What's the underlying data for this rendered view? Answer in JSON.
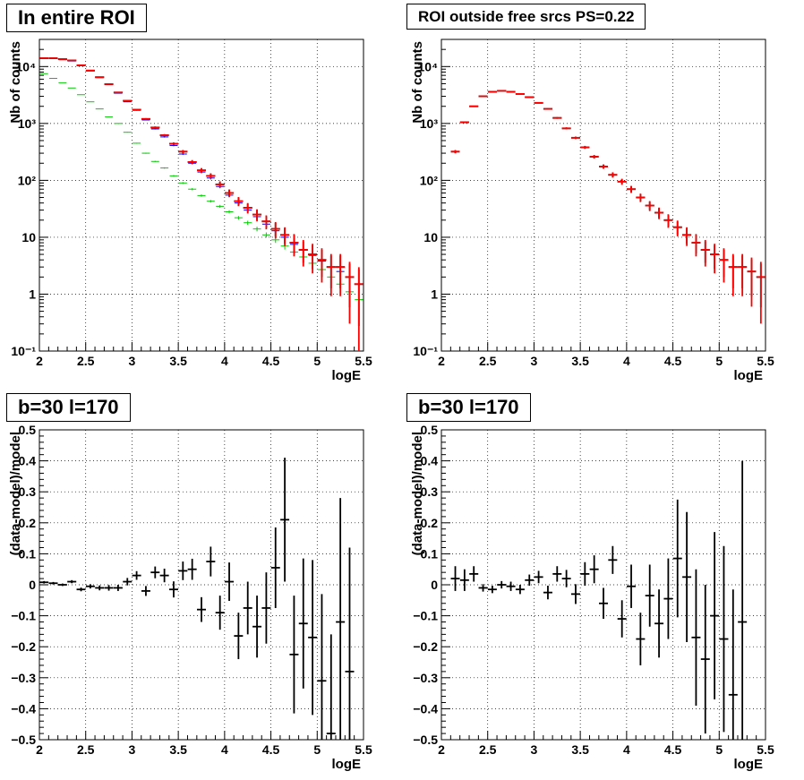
{
  "panels": {
    "top_left": {
      "title": "In entire ROI"
    },
    "top_right": {
      "title": "ROI outside free srcs PS=0.22"
    },
    "bottom_left": {
      "title": "b=30 l=170"
    },
    "bottom_right": {
      "title": "b=30 l=170"
    }
  },
  "colors": {
    "data": "#000000",
    "model_total": "#ff0000",
    "model_blue": "#0000ff",
    "model_green": "#00cc00"
  },
  "chart_data": [
    {
      "type": "scatter",
      "title": "In entire ROI",
      "xlabel": "logE",
      "ylabel": "Nb of counts",
      "xlim": [
        2,
        5.5
      ],
      "ylim": [
        0.1,
        30000
      ],
      "yscale": "log",
      "grid": true,
      "x_ticks": [
        "2",
        "2.5",
        "3",
        "3.5",
        "4",
        "4.5",
        "5",
        "5.5"
      ],
      "y_ticks": [
        "10⁻¹",
        "1",
        "10",
        "10²",
        "10³",
        "10⁴"
      ],
      "x": [
        2.05,
        2.15,
        2.25,
        2.35,
        2.45,
        2.55,
        2.65,
        2.75,
        2.85,
        2.95,
        3.05,
        3.15,
        3.25,
        3.35,
        3.45,
        3.55,
        3.65,
        3.75,
        3.85,
        3.95,
        4.05,
        4.15,
        4.25,
        4.35,
        4.45,
        4.55,
        4.65,
        4.75,
        4.85,
        4.95,
        5.05,
        5.15,
        5.25,
        5.35,
        5.45
      ],
      "series": [
        {
          "values": [
            14000,
            14000,
            13500,
            12800,
            10500,
            8500,
            6500,
            4900,
            3500,
            2500,
            1750,
            1200,
            850,
            620,
            440,
            320,
            210,
            150,
            120,
            85,
            60,
            43,
            33,
            25,
            19,
            14,
            11,
            8,
            6,
            5,
            4,
            3,
            3,
            2,
            1.5
          ]
        },
        {
          "values": [
            14000,
            13800,
            13200,
            12500,
            10600,
            8400,
            6400,
            4800,
            3400,
            2400,
            1700,
            1150,
            800,
            580,
            410,
            290,
            200,
            140,
            110,
            78,
            55,
            40,
            30,
            23,
            17,
            13,
            10,
            7.5,
            6,
            4.8,
            3.8,
            3,
            2.5,
            2,
            1.5
          ]
        },
        {
          "values": [
            7500,
            6200,
            5200,
            4200,
            3200,
            2400,
            1800,
            1300,
            1000,
            700,
            450,
            300,
            215,
            165,
            120,
            90,
            70,
            54,
            43,
            35,
            28,
            22,
            18,
            14,
            11,
            9,
            7,
            5.5,
            4.5,
            3.5,
            2.7,
            2,
            1.5,
            1.1,
            0.8
          ]
        },
        {
          "values": [
            14000,
            14000,
            13500,
            12800,
            10500,
            8500,
            6500,
            4900,
            3500,
            2500,
            1750,
            1200,
            850,
            620,
            440,
            320,
            210,
            150,
            120,
            85,
            60,
            43,
            33,
            25,
            19,
            14,
            11,
            8,
            6,
            5,
            4,
            3,
            3,
            2,
            1.5
          ]
        }
      ]
    },
    {
      "type": "scatter",
      "title": "ROI outside free srcs PS=0.22",
      "xlabel": "logE",
      "ylabel": "Nb of counts",
      "xlim": [
        2,
        5.5
      ],
      "ylim": [
        0.1,
        30000
      ],
      "yscale": "log",
      "grid": true,
      "x_ticks": [
        "2",
        "2.5",
        "3",
        "3.5",
        "4",
        "4.5",
        "5",
        "5.5"
      ],
      "y_ticks": [
        "10⁻¹",
        "1",
        "10",
        "10²",
        "10³",
        "10⁴"
      ],
      "x": [
        2.15,
        2.25,
        2.35,
        2.45,
        2.55,
        2.65,
        2.75,
        2.85,
        2.95,
        3.05,
        3.15,
        3.25,
        3.35,
        3.45,
        3.55,
        3.65,
        3.75,
        3.85,
        3.95,
        4.05,
        4.15,
        4.25,
        4.35,
        4.45,
        4.55,
        4.65,
        4.75,
        4.85,
        4.95,
        5.05,
        5.15,
        5.25,
        5.35,
        5.45
      ],
      "series": [
        {
          "values": [
            320,
            1050,
            2000,
            3000,
            3600,
            3750,
            3600,
            3300,
            2900,
            2300,
            1800,
            1250,
            820,
            560,
            380,
            260,
            175,
            125,
            95,
            70,
            50,
            36,
            27,
            20,
            15,
            11,
            8,
            6,
            5,
            4,
            3,
            3,
            2.5,
            2
          ]
        },
        {
          "values": [
            320,
            1050,
            2000,
            3000,
            3600,
            3750,
            3600,
            3300,
            2900,
            2300,
            1800,
            1250,
            820,
            560,
            380,
            260,
            175,
            125,
            95,
            70,
            50,
            36,
            27,
            20,
            15,
            11,
            8,
            6,
            5,
            4,
            3,
            3,
            2.5,
            2
          ]
        }
      ]
    },
    {
      "type": "scatter",
      "title": "b=30 l=170",
      "xlabel": "logE",
      "ylabel": "(data-model)/model",
      "xlim": [
        2,
        5.5
      ],
      "ylim": [
        -0.5,
        0.5
      ],
      "grid": true,
      "x_ticks": [
        "2",
        "2.5",
        "3",
        "3.5",
        "4",
        "4.5",
        "5",
        "5.5"
      ],
      "y_ticks": [
        "−0.5",
        "−0.4",
        "−0.3",
        "−0.2",
        "−0.1",
        "0",
        "0.1",
        "0.2",
        "0.3",
        "0.4",
        "0.5"
      ],
      "x": [
        2.05,
        2.15,
        2.25,
        2.35,
        2.45,
        2.55,
        2.65,
        2.75,
        2.85,
        2.95,
        3.05,
        3.15,
        3.25,
        3.35,
        3.45,
        3.55,
        3.65,
        3.75,
        3.85,
        3.95,
        4.05,
        4.15,
        4.25,
        4.35,
        4.45,
        4.55,
        4.65,
        4.75,
        4.85,
        4.95,
        5.05,
        5.15,
        5.25,
        5.35,
        5.45
      ],
      "series": [
        {
          "values": [
            0.008,
            0.005,
            0,
            0.01,
            -0.015,
            -0.005,
            -0.01,
            -0.01,
            -0.01,
            0.01,
            0.03,
            -0.02,
            0.04,
            0.03,
            -0.015,
            0.045,
            0.05,
            -0.08,
            0.075,
            -0.09,
            0.01,
            -0.165,
            -0.075,
            -0.135,
            -0.075,
            0.055,
            0.21,
            -0.225,
            -0.125,
            -0.17,
            -0.31,
            -0.48,
            -0.12,
            -0.28,
            null
          ],
          "errors": [
            0.004,
            0.004,
            0.004,
            0.005,
            0.006,
            0.007,
            0.008,
            0.009,
            0.01,
            0.012,
            0.014,
            0.016,
            0.019,
            0.022,
            0.026,
            0.03,
            0.034,
            0.04,
            0.048,
            0.055,
            0.062,
            0.075,
            0.085,
            0.1,
            0.115,
            0.13,
            0.2,
            0.19,
            0.21,
            0.25,
            0.28,
            0.32,
            0.4,
            0.4,
            null
          ]
        }
      ]
    },
    {
      "type": "scatter",
      "title": "b=30 l=170",
      "xlabel": "logE",
      "ylabel": "(data-model)/model",
      "xlim": [
        2,
        5.5
      ],
      "ylim": [
        -0.5,
        0.5
      ],
      "grid": true,
      "x_ticks": [
        "2",
        "2.5",
        "3",
        "3.5",
        "4",
        "4.5",
        "5",
        "5.5"
      ],
      "y_ticks": [
        "−0.5",
        "−0.4",
        "−0.3",
        "−0.2",
        "−0.1",
        "0",
        "0.1",
        "0.2",
        "0.3",
        "0.4",
        "0.5"
      ],
      "x": [
        2.15,
        2.25,
        2.35,
        2.45,
        2.55,
        2.65,
        2.75,
        2.85,
        2.95,
        3.05,
        3.15,
        3.25,
        3.35,
        3.45,
        3.55,
        3.65,
        3.75,
        3.85,
        3.95,
        4.05,
        4.15,
        4.25,
        4.35,
        4.45,
        4.55,
        4.65,
        4.75,
        4.85,
        4.95,
        5.05,
        5.15,
        5.25,
        5.35,
        5.45
      ],
      "series": [
        {
          "values": [
            0.02,
            0.015,
            0.035,
            -0.01,
            -0.015,
            0,
            -0.005,
            -0.015,
            0.015,
            0.025,
            -0.025,
            0.035,
            0.02,
            -0.03,
            0.035,
            0.05,
            -0.06,
            0.08,
            -0.11,
            -0.005,
            -0.175,
            -0.035,
            -0.125,
            -0.045,
            0.085,
            0.025,
            -0.17,
            -0.24,
            -0.1,
            -0.175,
            -0.355,
            -0.12,
            null,
            null
          ],
          "errors": [
            0.04,
            0.035,
            0.025,
            0.012,
            0.012,
            0.012,
            0.015,
            0.015,
            0.018,
            0.02,
            0.022,
            0.025,
            0.028,
            0.032,
            0.038,
            0.045,
            0.05,
            0.045,
            0.06,
            0.07,
            0.085,
            0.1,
            0.11,
            0.13,
            0.19,
            0.21,
            0.22,
            0.24,
            0.27,
            0.3,
            0.34,
            0.52,
            null,
            null
          ]
        }
      ]
    }
  ]
}
